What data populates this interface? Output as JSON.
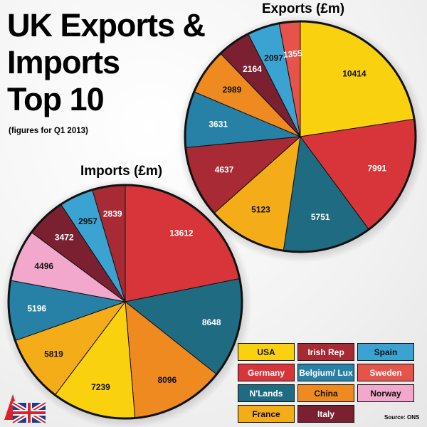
{
  "header": {
    "title": "UK Exports &\nImports\nTop 10",
    "subtitle": "(figures for Q1 2013)"
  },
  "colors": {
    "USA": "#f9d10e",
    "Germany": "#d8353a",
    "N'Lands": "#1f6b82",
    "France": "#f4ad19",
    "Irish Rep": "#a82a34",
    "Belgium/ Lux": "#2780a6",
    "China": "#ee8a1f",
    "Italy": "#7a2030",
    "Spain": "#3aa3d1",
    "Sweden": "#e5534b",
    "Norway": "#f2a8cc"
  },
  "legend": [
    {
      "label": "USA",
      "key": "USA"
    },
    {
      "label": "Irish Rep",
      "key": "Irish Rep"
    },
    {
      "label": "Spain",
      "key": "Spain"
    },
    {
      "label": "Germany",
      "key": "Germany"
    },
    {
      "label": "Belgium/ Lux",
      "key": "Belgium/ Lux"
    },
    {
      "label": "Sweden",
      "key": "Sweden"
    },
    {
      "label": "N'Lands",
      "key": "N'Lands"
    },
    {
      "label": "China",
      "key": "China"
    },
    {
      "label": "Norway",
      "key": "Norway"
    },
    {
      "label": "France",
      "key": "France"
    },
    {
      "label": "Italy",
      "key": "Italy"
    }
  ],
  "source": "Source: ONS",
  "chart_data": [
    {
      "type": "pie",
      "title": "Exports (£m)",
      "categories": [
        "USA",
        "Germany",
        "N'Lands",
        "France",
        "Irish Rep",
        "Belgium/ Lux",
        "China",
        "Italy",
        "Spain",
        "Sweden"
      ],
      "values": [
        10414,
        7991,
        5751,
        5123,
        4637,
        3631,
        2989,
        2164,
        2097,
        1355
      ]
    },
    {
      "type": "pie",
      "title": "Imports (£m)",
      "categories": [
        "Germany",
        "N'Lands",
        "China",
        "USA",
        "France",
        "Belgium/ Lux",
        "Norway",
        "Italy",
        "Spain",
        "Irish Rep"
      ],
      "values": [
        13612,
        8648,
        8096,
        7239,
        5819,
        5196,
        4496,
        3472,
        2957,
        2839
      ]
    }
  ]
}
